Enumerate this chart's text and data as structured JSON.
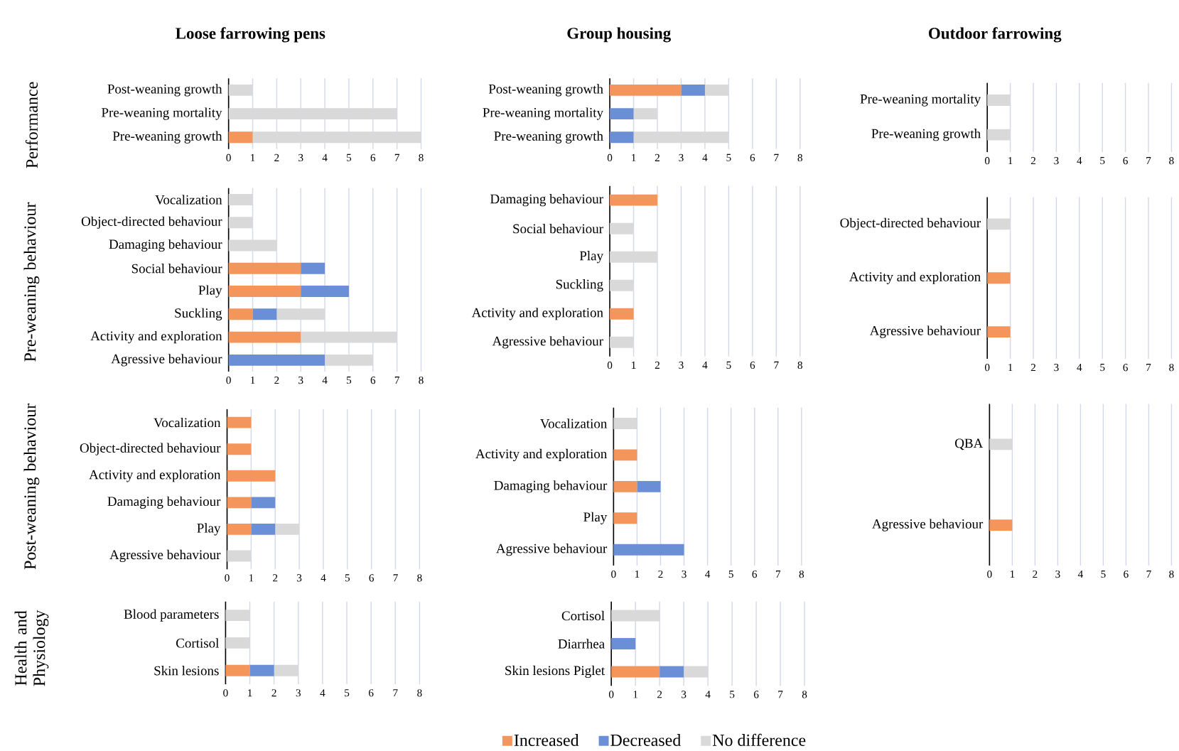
{
  "chart_data": [
    {
      "type": "bar",
      "orientation": "horizontal",
      "stacked": true,
      "title": "Loose farrowing pens",
      "ylabel": "Performance",
      "legend": "bottom",
      "grid": "x",
      "xlim": [
        0,
        8
      ],
      "xticks": [
        0,
        1,
        2,
        3,
        4,
        5,
        6,
        7,
        8
      ],
      "categories": [
        "Post-weaning growth",
        "Pre-weaning mortality",
        "Pre-weaning growth"
      ],
      "series": [
        {
          "name": "Increased",
          "color": "#f4955b",
          "values": [
            0,
            0,
            1
          ]
        },
        {
          "name": "Decreased",
          "color": "#6a8fd6",
          "values": [
            0,
            0,
            0
          ]
        },
        {
          "name": "No difference",
          "color": "#d9d9d9",
          "values": [
            1,
            7,
            7
          ]
        }
      ]
    },
    {
      "type": "bar",
      "orientation": "horizontal",
      "stacked": true,
      "title": "Group housing",
      "grid": "x",
      "xlim": [
        0,
        8
      ],
      "xticks": [
        0,
        1,
        2,
        3,
        4,
        5,
        6,
        7,
        8
      ],
      "categories": [
        "Post-weaning growth",
        "Pre-weaning mortality",
        "Pre-weaning growth"
      ],
      "series": [
        {
          "color": "#f4955b",
          "values": [
            3,
            0,
            0
          ]
        },
        {
          "color": "#6a8fd6",
          "values": [
            1,
            1,
            1
          ]
        },
        {
          "color": "#d9d9d9",
          "values": [
            1,
            1,
            4
          ]
        }
      ]
    },
    {
      "type": "bar",
      "orientation": "horizontal",
      "stacked": true,
      "title": "Outdoor farrowing",
      "grid": "x",
      "xlim": [
        0,
        8
      ],
      "xticks": [
        0,
        1,
        2,
        3,
        4,
        5,
        6,
        7,
        8
      ],
      "categories": [
        "Pre-weaning mortality",
        "Pre-weaning growth"
      ],
      "series": [
        {
          "color": "#f4955b",
          "values": [
            0,
            0
          ]
        },
        {
          "color": "#6a8fd6",
          "values": [
            0,
            0
          ]
        },
        {
          "color": "#d9d9d9",
          "values": [
            1,
            1
          ]
        }
      ]
    },
    {
      "type": "bar",
      "orientation": "horizontal",
      "stacked": true,
      "ylabel": "Pre-weaning behaviour",
      "grid": "x",
      "xlim": [
        0,
        8
      ],
      "xticks": [
        0,
        1,
        2,
        3,
        4,
        5,
        6,
        7,
        8
      ],
      "categories": [
        "Vocalization",
        "Object-directed behaviour",
        "Damaging behaviour",
        "Social behaviour",
        "Play",
        "Suckling",
        "Activity and exploration",
        "Agressive behaviour"
      ],
      "series": [
        {
          "color": "#f4955b",
          "values": [
            0,
            0,
            0,
            3,
            3,
            1,
            3,
            0
          ]
        },
        {
          "color": "#6a8fd6",
          "values": [
            0,
            0,
            0,
            1,
            2,
            1,
            0,
            4
          ]
        },
        {
          "color": "#d9d9d9",
          "values": [
            1,
            1,
            2,
            0,
            0,
            2,
            4,
            2
          ]
        }
      ]
    },
    {
      "type": "bar",
      "orientation": "horizontal",
      "stacked": true,
      "grid": "x",
      "xlim": [
        0,
        8
      ],
      "xticks": [
        0,
        1,
        2,
        3,
        4,
        5,
        6,
        7,
        8
      ],
      "categories": [
        "Damaging behaviour",
        "Social behaviour",
        "Play",
        "Suckling",
        "Activity and exploration",
        "Agressive behaviour"
      ],
      "series": [
        {
          "color": "#f4955b",
          "values": [
            2,
            0,
            0,
            0,
            1,
            0
          ]
        },
        {
          "color": "#6a8fd6",
          "values": [
            0,
            0,
            0,
            0,
            0,
            0
          ]
        },
        {
          "color": "#d9d9d9",
          "values": [
            0,
            1,
            2,
            1,
            0,
            1
          ]
        }
      ]
    },
    {
      "type": "bar",
      "orientation": "horizontal",
      "stacked": true,
      "grid": "x",
      "xlim": [
        0,
        8
      ],
      "xticks": [
        0,
        1,
        2,
        3,
        4,
        5,
        6,
        7,
        8
      ],
      "categories": [
        "Object-directed behaviour",
        "Activity and exploration",
        "Agressive behaviour"
      ],
      "series": [
        {
          "color": "#f4955b",
          "values": [
            0,
            1,
            1
          ]
        },
        {
          "color": "#6a8fd6",
          "values": [
            0,
            0,
            0
          ]
        },
        {
          "color": "#d9d9d9",
          "values": [
            1,
            0,
            0
          ]
        }
      ]
    },
    {
      "type": "bar",
      "orientation": "horizontal",
      "stacked": true,
      "ylabel": "Post-weaning behaviour",
      "grid": "x",
      "xlim": [
        0,
        8
      ],
      "xticks": [
        0,
        1,
        2,
        3,
        4,
        5,
        6,
        7,
        8
      ],
      "categories": [
        "Vocalization",
        "Object-directed behaviour",
        "Activity and exploration",
        "Damaging behaviour",
        "Play",
        "Agressive behaviour"
      ],
      "series": [
        {
          "color": "#f4955b",
          "values": [
            1,
            1,
            2,
            1,
            1,
            0
          ]
        },
        {
          "color": "#6a8fd6",
          "values": [
            0,
            0,
            0,
            1,
            1,
            0
          ]
        },
        {
          "color": "#d9d9d9",
          "values": [
            0,
            0,
            0,
            0,
            1,
            1
          ]
        }
      ]
    },
    {
      "type": "bar",
      "orientation": "horizontal",
      "stacked": true,
      "grid": "x",
      "xlim": [
        0,
        8
      ],
      "xticks": [
        0,
        1,
        2,
        3,
        4,
        5,
        6,
        7,
        8
      ],
      "categories": [
        "Vocalization",
        "Activity and exploration",
        "Damaging behaviour",
        "Play",
        "Agressive behaviour"
      ],
      "series": [
        {
          "color": "#f4955b",
          "values": [
            0,
            1,
            1,
            1,
            0
          ]
        },
        {
          "color": "#6a8fd6",
          "values": [
            0,
            0,
            1,
            0,
            3
          ]
        },
        {
          "color": "#d9d9d9",
          "values": [
            1,
            0,
            0,
            0,
            0
          ]
        }
      ]
    },
    {
      "type": "bar",
      "orientation": "horizontal",
      "stacked": true,
      "grid": "x",
      "xlim": [
        0,
        8
      ],
      "xticks": [
        0,
        1,
        2,
        3,
        4,
        5,
        6,
        7,
        8
      ],
      "categories": [
        "QBA",
        "Agressive behaviour"
      ],
      "series": [
        {
          "color": "#f4955b",
          "values": [
            0,
            1
          ]
        },
        {
          "color": "#6a8fd6",
          "values": [
            0,
            0
          ]
        },
        {
          "color": "#d9d9d9",
          "values": [
            1,
            0
          ]
        }
      ]
    },
    {
      "type": "bar",
      "orientation": "horizontal",
      "stacked": true,
      "ylabel": "Health and Physiology",
      "grid": "x",
      "xlim": [
        0,
        8
      ],
      "xticks": [
        0,
        1,
        2,
        3,
        4,
        5,
        6,
        7,
        8
      ],
      "categories": [
        "Blood parameters",
        "Cortisol",
        "Skin lesions"
      ],
      "series": [
        {
          "color": "#f4955b",
          "values": [
            0,
            0,
            1
          ]
        },
        {
          "color": "#6a8fd6",
          "values": [
            0,
            0,
            1
          ]
        },
        {
          "color": "#d9d9d9",
          "values": [
            1,
            1,
            1
          ]
        }
      ]
    },
    {
      "type": "bar",
      "orientation": "horizontal",
      "stacked": true,
      "grid": "x",
      "xlim": [
        0,
        8
      ],
      "xticks": [
        0,
        1,
        2,
        3,
        4,
        5,
        6,
        7,
        8
      ],
      "categories": [
        "Cortisol",
        "Diarrhea",
        "Skin lesions Piglet"
      ],
      "series": [
        {
          "color": "#f4955b",
          "values": [
            0,
            0,
            2
          ]
        },
        {
          "color": "#6a8fd6",
          "values": [
            0,
            1,
            1
          ]
        },
        {
          "color": "#d9d9d9",
          "values": [
            2,
            0,
            1
          ]
        }
      ]
    }
  ]
}
